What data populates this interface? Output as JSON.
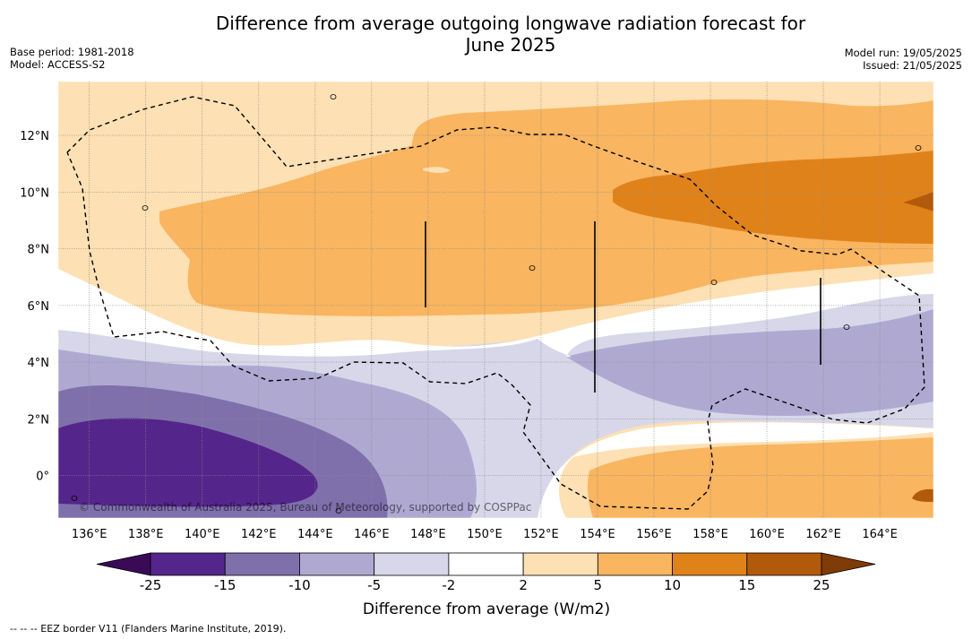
{
  "header": {
    "title_line1": "Difference from average outgoing longwave radiation forecast for",
    "title_line2": "June 2025",
    "base_period": "Base period: 1981-2018",
    "model": "Model: ACCESS-S2",
    "model_run": "Model run: 19/05/2025",
    "issued": "Issued: 21/05/2025"
  },
  "footer": {
    "eez_note": "--  --  -- EEZ border V11 (Flanders Marine Institute, 2019).",
    "copyright": "© Commonwealth of Australia 2025, Bureau of Meteorology, supported by COSPPac"
  },
  "colors": {
    "below_-25": "#3a0a57",
    "-25_-15": "#54258a",
    "-15_-10": "#7f70ac",
    "-10_-5": "#afa9d2",
    "-5_-2": "#d7d7e9",
    "-2_2": "#ffffff",
    "2_5": "#fde0b3",
    "5_10": "#f9b560",
    "10_15": "#e0821a",
    "15_25": "#b25a0c",
    "above_25": "#7f3b08"
  },
  "chart_data": {
    "type": "heatmap",
    "title": "Difference from average outgoing longwave radiation forecast for June 2025",
    "units": "W/m2",
    "colorbar_label": "Difference from average (W/m2)",
    "colorbar_levels": [
      "-25",
      "-15",
      "-10",
      "-5",
      "-2",
      "2",
      "5",
      "10",
      "15",
      "25"
    ],
    "colorbar_extend": "both",
    "x_ticks": [
      "136°E",
      "138°E",
      "140°E",
      "142°E",
      "144°E",
      "146°E",
      "148°E",
      "150°E",
      "152°E",
      "154°E",
      "156°E",
      "158°E",
      "160°E",
      "162°E",
      "164°E"
    ],
    "y_ticks": [
      "0°",
      "2°N",
      "4°N",
      "6°N",
      "8°N",
      "10°N",
      "12°N"
    ],
    "lon_range": [
      134.9,
      165.9
    ],
    "lat_range": [
      -1.5,
      13.9
    ],
    "grid": true,
    "regions": [
      {
        "range": "2 to 5",
        "extent": "west and north of map, ~1°N–14°N, 135°E–166°E; also band near 0–1°N east of 152°E"
      },
      {
        "range": "5 to 10",
        "extent": "~5°N–12°N, 139°E–166°E; also ~0–1°N, 153°E–166°E"
      },
      {
        "range": "10 to 15",
        "extent": "~8°N–11.5°N, 154°E–166°E"
      },
      {
        "range": "15 to 25",
        "extent": "small patch near 9.5°N, 165°E–166°E"
      },
      {
        "range": "-2 to 2",
        "extent": "band ~2°N–5°N across the map"
      },
      {
        "range": "-5 to -2",
        "extent": "~1°N–5.5°N; widest south and west"
      },
      {
        "range": "-10 to -5",
        "extent": "~0–4.5°N in west, ~2.5°N–5°N in east"
      },
      {
        "range": "-15 to -10",
        "extent": "~-1.5°N–3°N, 135°E–146°E"
      },
      {
        "range": "-25 to -15",
        "extent": "~0–2°N, 135°E–144°E"
      }
    ],
    "legend_note": "EEZ border V11 (Flanders Marine Institute, 2019)"
  }
}
